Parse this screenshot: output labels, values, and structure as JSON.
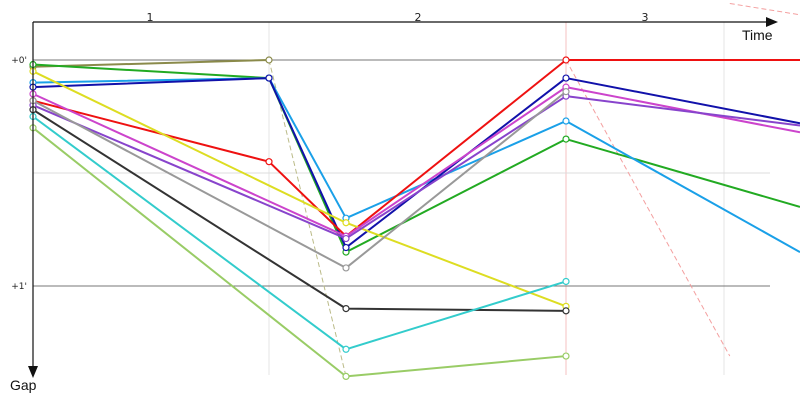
{
  "chart_data": {
    "type": "line",
    "title": "",
    "xlabel": "Time",
    "ylabel": "Gap",
    "x": [
      0,
      1,
      2,
      3,
      4
    ],
    "lap_labels": [
      "1",
      "2",
      "3"
    ],
    "y_ticks": [
      {
        "value": 0,
        "label": "+0'"
      },
      {
        "value": 1,
        "label": "+1'"
      }
    ],
    "grid": true,
    "ylim": [
      -0.25,
      1.4
    ],
    "colors": {
      "axis": "#111111",
      "grid_major": "#777777",
      "grid_minor": "#dddddd",
      "grid_vertical": "#e4e4e4",
      "lap_marker": "#f4c0c0"
    },
    "series": [
      {
        "color": "#8a8a4a",
        "values": [
          0.03,
          0.0,
          null,
          null,
          null
        ]
      },
      {
        "color": "#22aa22",
        "values": [
          0.02,
          0.08,
          0.85,
          0.35,
          0.65
        ]
      },
      {
        "color": "#1aa0e8",
        "values": [
          0.1,
          0.08,
          0.7,
          0.27,
          0.85
        ]
      },
      {
        "color": "#1111aa",
        "values": [
          0.12,
          0.08,
          0.83,
          0.08,
          0.28
        ]
      },
      {
        "color": "#ee1111",
        "values": [
          0.18,
          0.45,
          0.78,
          0.0,
          0.0
        ]
      },
      {
        "color": "#dddd22",
        "values": [
          0.05,
          null,
          0.72,
          1.09,
          null
        ]
      },
      {
        "color": "#cc44cc",
        "values": [
          0.15,
          null,
          0.78,
          0.12,
          0.32
        ]
      },
      {
        "color": "#8844cc",
        "values": [
          0.2,
          null,
          0.79,
          0.16,
          0.29
        ]
      },
      {
        "color": "#999999",
        "values": [
          0.18,
          null,
          0.92,
          0.14,
          null
        ]
      },
      {
        "color": "#333333",
        "values": [
          0.22,
          null,
          1.1,
          1.11,
          null
        ]
      },
      {
        "color": "#33cccc",
        "values": [
          0.25,
          null,
          1.28,
          0.98,
          null
        ]
      },
      {
        "color": "#99cc66",
        "values": [
          0.3,
          null,
          1.4,
          1.31,
          null
        ]
      }
    ],
    "lap_connectors": [
      {
        "color": "#bbbb88",
        "points": [
          [
            1,
            0.0
          ],
          [
            2,
            1.4
          ]
        ]
      },
      {
        "color": "#f4a0a0",
        "points": [
          [
            3,
            0.0
          ],
          [
            3.7,
            1.31
          ]
        ]
      },
      {
        "color": "#f4a0a0",
        "points": [
          [
            3.7,
            -0.25
          ],
          [
            4,
            -0.2
          ]
        ]
      }
    ]
  }
}
